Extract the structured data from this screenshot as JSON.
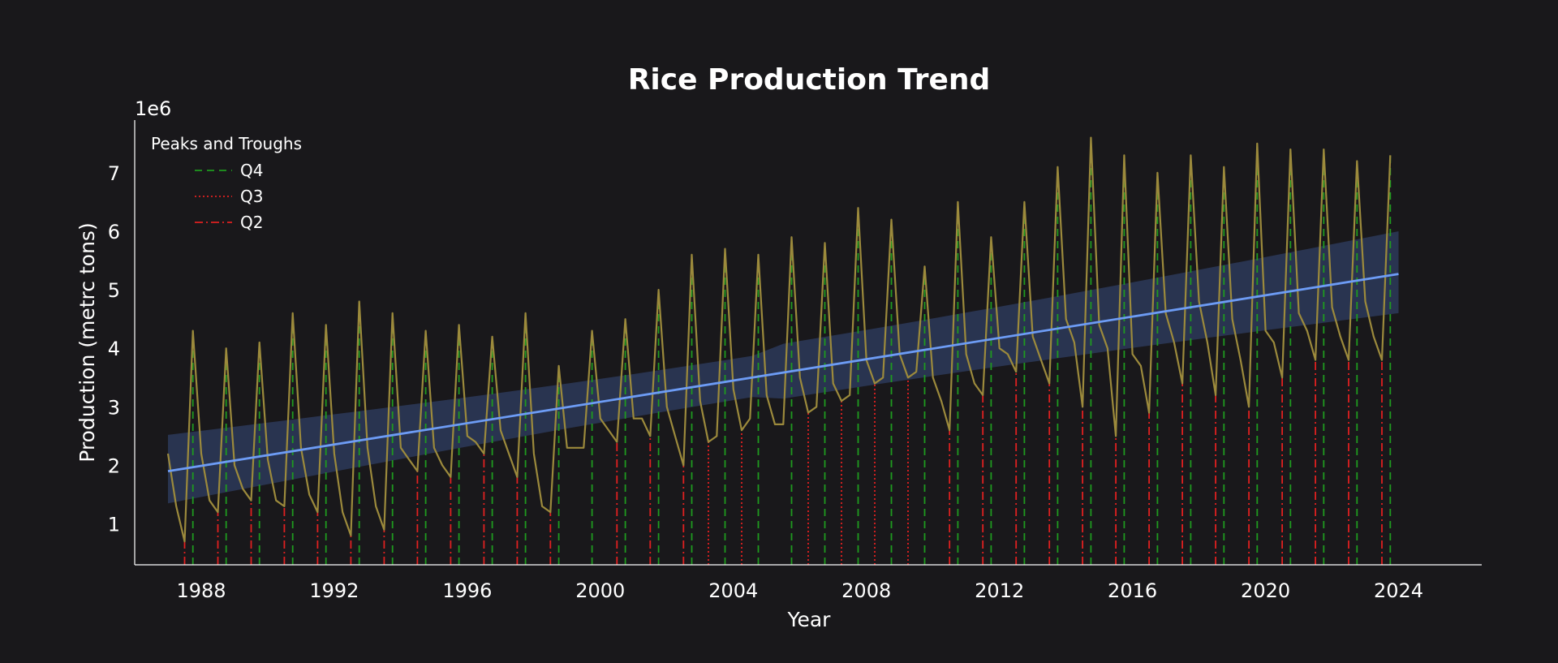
{
  "chart_data": {
    "type": "line",
    "title": "Rice Production Trend",
    "xlabel": "Year",
    "ylabel": "Production (metrc tons)",
    "y_offset_label": "1e6",
    "xlim": [
      1986.0,
      2026.5
    ],
    "ylim": [
      0.3,
      7.9
    ],
    "xticks": [
      1988,
      1992,
      1996,
      2000,
      2004,
      2008,
      2012,
      2016,
      2020,
      2024
    ],
    "yticks": [
      1,
      2,
      3,
      4,
      5,
      6,
      7
    ],
    "grid": false,
    "legend": {
      "title": "Peaks and Troughs",
      "placement": "top-left",
      "entries": [
        {
          "label": "Q4",
          "color": "#1f9a1f",
          "style": "dashed"
        },
        {
          "label": "Q3",
          "color": "#e02020",
          "style": "dotted"
        },
        {
          "label": "Q2",
          "color": "#e02020",
          "style": "dashdot"
        }
      ]
    },
    "series": [
      {
        "color": "#9c8a3c",
        "values_unit": "million metric tons",
        "start_year": 1987.0,
        "step_years": 0.25,
        "values": [
          2.2,
          1.3,
          0.7,
          4.3,
          2.2,
          1.4,
          1.2,
          4.0,
          2.0,
          1.6,
          1.4,
          4.1,
          2.1,
          1.4,
          1.3,
          4.6,
          2.3,
          1.5,
          1.2,
          4.4,
          2.2,
          1.2,
          0.8,
          4.8,
          2.3,
          1.3,
          0.9,
          4.6,
          2.3,
          2.1,
          1.9,
          4.3,
          2.3,
          2.0,
          1.8,
          4.4,
          2.5,
          2.4,
          2.2,
          4.2,
          2.6,
          2.2,
          1.8,
          4.6,
          2.2,
          1.3,
          1.2,
          3.7,
          2.3,
          2.3,
          2.3,
          4.3,
          2.8,
          2.6,
          2.4,
          4.5,
          2.8,
          2.8,
          2.5,
          5.0,
          3.0,
          2.5,
          2.0,
          5.6,
          3.1,
          2.4,
          2.5,
          5.7,
          3.3,
          2.6,
          2.8,
          5.6,
          3.2,
          2.7,
          2.7,
          5.9,
          3.5,
          2.9,
          3.0,
          5.8,
          3.4,
          3.1,
          3.2,
          6.4,
          3.8,
          3.4,
          3.5,
          6.2,
          3.9,
          3.5,
          3.6,
          5.4,
          3.5,
          3.1,
          2.6,
          6.5,
          3.9,
          3.4,
          3.2,
          5.9,
          4.0,
          3.9,
          3.6,
          6.5,
          4.2,
          3.8,
          3.4,
          7.1,
          4.5,
          4.1,
          3.0,
          7.6,
          4.4,
          4.0,
          2.5,
          7.3,
          3.9,
          3.7,
          2.9,
          7.0,
          4.6,
          4.1,
          3.4,
          7.3,
          4.8,
          4.1,
          3.2,
          7.1,
          4.5,
          3.8,
          3.0,
          7.5,
          4.3,
          4.1,
          3.5,
          7.4,
          4.6,
          4.3,
          3.8,
          7.4,
          4.7,
          4.2,
          3.8,
          7.2,
          4.8,
          4.2,
          3.8,
          7.3
        ]
      }
    ],
    "trend": {
      "color": "#6d9cf5",
      "band_color": "#2f3d63",
      "x": [
        1987.0,
        2024.0
      ],
      "y": [
        1.9,
        5.27
      ],
      "band_lower": [
        1.35,
        4.6
      ],
      "band_upper": [
        2.52,
        6.0
      ]
    }
  }
}
